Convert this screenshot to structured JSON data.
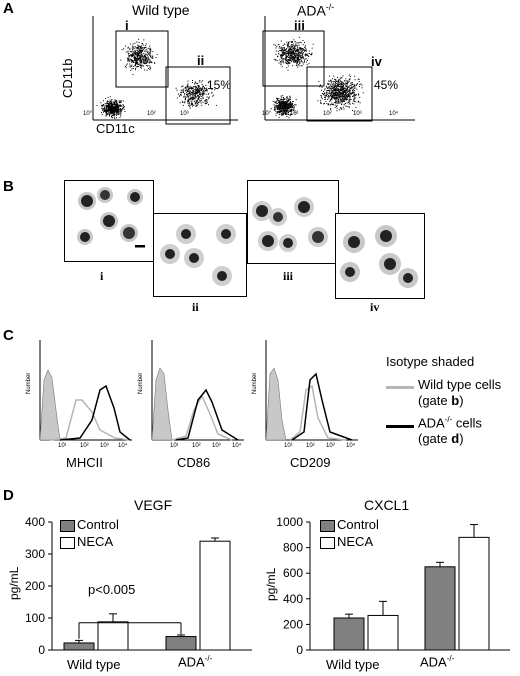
{
  "panelA": {
    "letter": "A",
    "title_wt": "Wild type",
    "title_ada": "ADA",
    "title_ada_sup": "-/-",
    "ylabel": "CD11b",
    "xlabel": "CD11c",
    "gate_i": "i",
    "gate_ii": "ii",
    "gate_iii": "iii",
    "gate_iv": "iv",
    "pct_wt": "15%",
    "pct_ada": "45%",
    "ticks": [
      "10°",
      "10¹",
      "10²",
      "10³",
      "10⁴"
    ]
  },
  "panelB": {
    "letter": "B",
    "labels": [
      "i",
      "ii",
      "iii",
      "iv"
    ]
  },
  "panelC": {
    "letter": "C",
    "ylabel": "Number",
    "plots": [
      "MHCII",
      "CD86",
      "CD209"
    ],
    "legend": {
      "title": "Isotype shaded",
      "wt_line1": "Wild type cells",
      "wt_line2_pre": "(gate ",
      "wt_gate": "b",
      "wt_line2_post": ")",
      "ada_pre": "ADA",
      "ada_sup": "-/-",
      "ada_post": " cells",
      "ada_line2_pre": "(gate ",
      "ada_gate": "d",
      "ada_line2_post": ")"
    },
    "ticks": [
      "10¹",
      "10²",
      "10³",
      "10⁴"
    ],
    "colors": {
      "wild_type": "#b5b5b5",
      "ada": "#000000",
      "isotype": "#c8c8c8"
    }
  },
  "panelD": {
    "letter": "D",
    "pvalue": "p<0.005",
    "legend": [
      "Control",
      "NECA"
    ],
    "group_wt": "Wild type",
    "group_ada": "ADA",
    "group_ada_sup": "-/-",
    "colors": {
      "control": "#808080",
      "neca": "#ffffff"
    }
  },
  "chart_data": [
    {
      "type": "bar",
      "title": "VEGF",
      "ylabel": "pg/mL",
      "ylim": [
        0,
        400
      ],
      "yticks": [
        0,
        100,
        200,
        300,
        400
      ],
      "categories": [
        "Wild type",
        "ADA-/-"
      ],
      "series": [
        {
          "name": "Control",
          "values": [
            22,
            42
          ],
          "errors": [
            8,
            5
          ]
        },
        {
          "name": "NECA",
          "values": [
            88,
            340
          ],
          "errors": [
            25,
            10
          ]
        }
      ],
      "annotation": "p<0.005"
    },
    {
      "type": "bar",
      "title": "CXCL1",
      "ylabel": "pg/mL",
      "ylim": [
        0,
        1000
      ],
      "yticks": [
        0,
        200,
        400,
        600,
        800,
        1000
      ],
      "categories": [
        "Wild type",
        "ADA-/-"
      ],
      "series": [
        {
          "name": "Control",
          "values": [
            250,
            650
          ],
          "errors": [
            30,
            35
          ]
        },
        {
          "name": "NECA",
          "values": [
            270,
            880
          ],
          "errors": [
            110,
            100
          ]
        }
      ]
    }
  ]
}
